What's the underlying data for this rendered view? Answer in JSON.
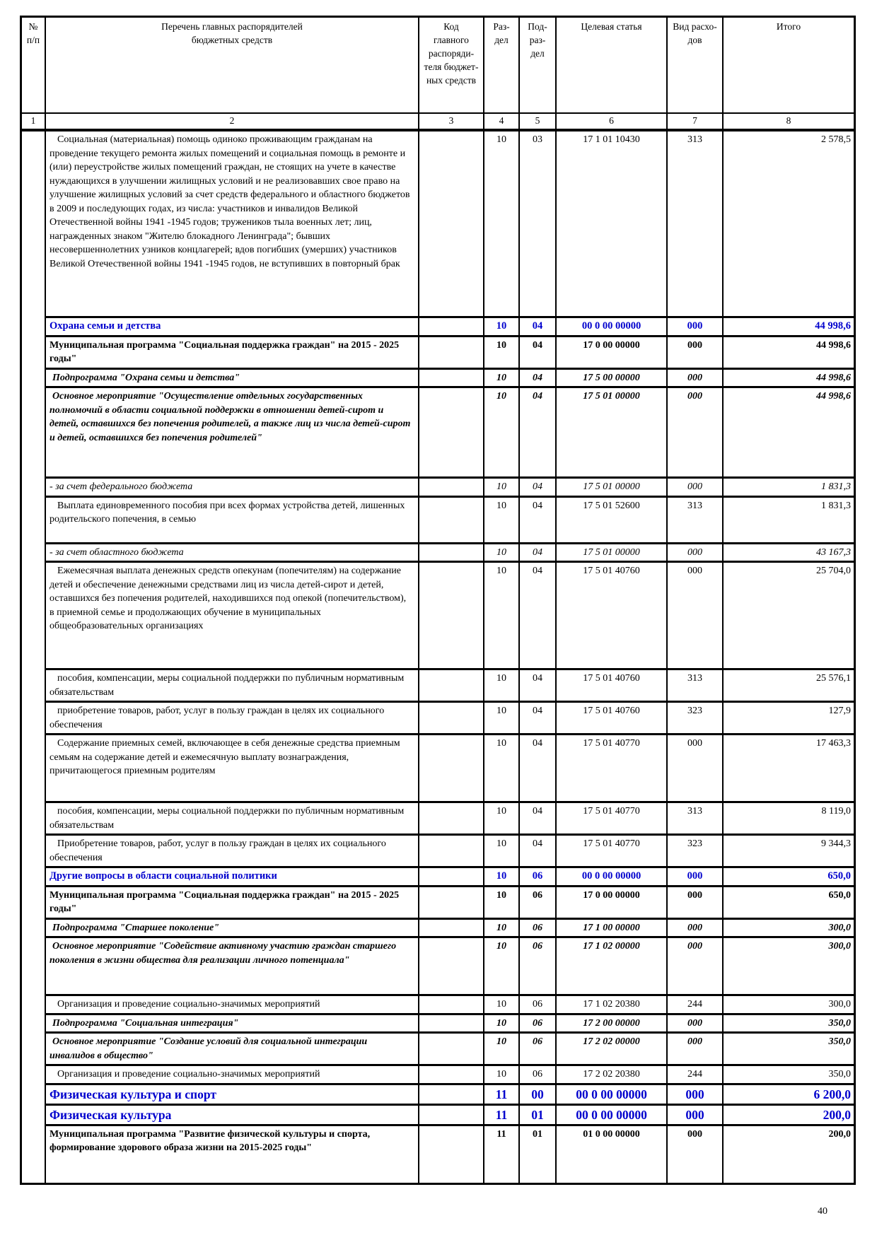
{
  "accent_color": "#0000cd",
  "page_number": "40",
  "header": {
    "cols": [
      "№\nп/п",
      "Перечень главных распорядителей\nбюджетных средств",
      "Код\nглавного\nраспоряди-\nтеля бюджет-\nных средств",
      "Раз-\nдел",
      "Под-\nраз-\nдел",
      "Целевая статья",
      "Вид расхо-\nдов",
      "Итого"
    ],
    "nums": [
      "1",
      "2",
      "3",
      "4",
      "5",
      "6",
      "7",
      "8"
    ]
  },
  "rows": [
    {
      "name": "Социальная (материальная) помощь одиноко проживающим гражданам на проведение текущего ремонта жилых помещений и социальная помощь в ремонте и (или) переустройстве жилых помещений граждан, не стоящих на учете в качестве нуждающихся в улучшении жилищных условий и не реализовавших свое право на улучшение жилищных условий за счет средств федерального и областного бюджетов в 2009 и последующих годах, из числа: участников и инвалидов Великой Отечественной войны 1941 -1945 годов; тружеников тыла военных лет; лиц, награжденных знаком \"Жителю блокадного Ленинграда\"; бывших несовершеннолетних узников концлагерей; вдов погибших (умерших) участников Великой Отечественной войны 1941 -1945 годов, не вступивших в повторный брак",
      "code": "",
      "rz": "10",
      "pr": "03",
      "cs": "17 1 01 10430",
      "vr": "313",
      "total": "2 578,5",
      "variant": "normal"
    },
    {
      "name": "Охрана семьи и детства",
      "code": "",
      "rz": "10",
      "pr": "04",
      "cs": "00 0 00 00000",
      "vr": "000",
      "total": "44 998,6",
      "variant": "blue"
    },
    {
      "name": "Муниципальная программа \"Социальная поддержка граждан\" на 2015 - 2025 годы\"",
      "code": "",
      "rz": "10",
      "pr": "04",
      "cs": "17 0 00 00000",
      "vr": "000",
      "total": "44 998,6",
      "variant": "bold"
    },
    {
      "name": "Подпрограмма \"Охрана семьи и детства\"",
      "code": "",
      "rz": "10",
      "pr": "04",
      "cs": "17 5 00 00000",
      "vr": "000",
      "total": "44 998,6",
      "variant": "bolditalic"
    },
    {
      "name": "Основное мероприятие \"Осуществление отдельных государственных полномочий в области социальной поддержки в отношении детей-сирот и детей, оставшихся без попечения родителей, а также лиц из числа детей-сирот и детей, оставшихся без попечения родителей\"",
      "code": "",
      "rz": "10",
      "pr": "04",
      "cs": "17 5 01 00000",
      "vr": "000",
      "total": "44 998,6",
      "variant": "bolditalic"
    },
    {
      "name": "- за счет федерального бюджета",
      "code": "",
      "rz": "10",
      "pr": "04",
      "cs": "17 5 01 00000",
      "vr": "000",
      "total": "1 831,3",
      "variant": "italic"
    },
    {
      "name": "Выплата единовременного пособия при всех формах устройства детей, лишенных родительского попечения, в семью",
      "code": "",
      "rz": "10",
      "pr": "04",
      "cs": "17 5 01 52600",
      "vr": "313",
      "total": "1 831,3",
      "variant": "normal"
    },
    {
      "name": "- за счет областного бюджета",
      "code": "",
      "rz": "10",
      "pr": "04",
      "cs": "17 5 01 00000",
      "vr": "000",
      "total": "43 167,3",
      "variant": "italic"
    },
    {
      "name": "Ежемесячная выплата денежных средств опекунам (попечителям) на содержание детей и обеспечение денежными средствами лиц из числа детей-сирот и детей, оставшихся без попечения родителей, находившихся под опекой (попечительством), в приемной семье и продолжающих обучение в муниципальных общеобразовательных организациях",
      "code": "",
      "rz": "10",
      "pr": "04",
      "cs": "17 5 01 40760",
      "vr": "000",
      "total": "25 704,0",
      "variant": "normal"
    },
    {
      "name": "пособия, компенсации, меры социальной поддержки по публичным нормативным обязательствам",
      "code": "",
      "rz": "10",
      "pr": "04",
      "cs": "17 5 01 40760",
      "vr": "313",
      "total": "25 576,1",
      "variant": "normal"
    },
    {
      "name": "приобретение товаров, работ, услуг в пользу граждан в целях их социального обеспечения",
      "code": "",
      "rz": "10",
      "pr": "04",
      "cs": "17 5 01 40760",
      "vr": "323",
      "total": "127,9",
      "variant": "normal"
    },
    {
      "name": "Содержание приемных семей, включающее в себя денежные средства приемным семьям на содержание детей и ежемесячную выплату вознаграждения, причитающегося приемным родителям",
      "code": "",
      "rz": "10",
      "pr": "04",
      "cs": "17 5 01 40770",
      "vr": "000",
      "total": "17 463,3",
      "variant": "normal"
    },
    {
      "name": "пособия, компенсации, меры социальной поддержки по публичным нормативным обязательствам",
      "code": "",
      "rz": "10",
      "pr": "04",
      "cs": "17 5 01 40770",
      "vr": "313",
      "total": "8 119,0",
      "variant": "normal"
    },
    {
      "name": "Приобретение товаров, работ, услуг в пользу граждан в целях их социального обеспечения",
      "code": "",
      "rz": "10",
      "pr": "04",
      "cs": "17 5 01 40770",
      "vr": "323",
      "total": "9 344,3",
      "variant": "normal"
    },
    {
      "name": "Другие вопросы в области социальной политики",
      "code": "",
      "rz": "10",
      "pr": "06",
      "cs": "00 0 00 00000",
      "vr": "000",
      "total": "650,0",
      "variant": "blue"
    },
    {
      "name": "Муниципальная программа \"Социальная поддержка граждан\" на 2015 - 2025 годы\"",
      "code": "",
      "rz": "10",
      "pr": "06",
      "cs": "17 0 00 00000",
      "vr": "000",
      "total": "650,0",
      "variant": "bold"
    },
    {
      "name": "Подпрограмма \"Старшее поколение\"",
      "code": "",
      "rz": "10",
      "pr": "06",
      "cs": "17 1 00 00000",
      "vr": "000",
      "total": "300,0",
      "variant": "bolditalic"
    },
    {
      "name": "Основное мероприятие \"Содействие активному участию граждан старшего поколения в жизни общества для реализации личного потенциала\"",
      "code": "",
      "rz": "10",
      "pr": "06",
      "cs": "17 1 02 00000",
      "vr": "000",
      "total": "300,0",
      "variant": "bolditalic"
    },
    {
      "name": "Организация и проведение социально-значимых мероприятий",
      "code": "",
      "rz": "10",
      "pr": "06",
      "cs": "17 1 02 20380",
      "vr": "244",
      "total": "300,0",
      "variant": "normal"
    },
    {
      "name": "Подпрограмма \"Социальная интеграция\"",
      "code": "",
      "rz": "10",
      "pr": "06",
      "cs": "17 2 00 00000",
      "vr": "000",
      "total": "350,0",
      "variant": "bolditalic"
    },
    {
      "name": "Основное мероприятие \"Создание условий для социальной интеграции инвалидов в общество\"",
      "code": "",
      "rz": "10",
      "pr": "06",
      "cs": "17 2 02 00000",
      "vr": "000",
      "total": "350,0",
      "variant": "bolditalic"
    },
    {
      "name": "Организация и проведение социально-значимых мероприятий",
      "code": "",
      "rz": "10",
      "pr": "06",
      "cs": "17 2 02 20380",
      "vr": "244",
      "total": "350,0",
      "variant": "normal"
    },
    {
      "name": "Физическая культура и спорт",
      "code": "",
      "rz": "11",
      "pr": "00",
      "cs": "00 0 00 00000",
      "vr": "000",
      "total": "6 200,0",
      "variant": "blue-lg"
    },
    {
      "name": "Физическая культура",
      "code": "",
      "rz": "11",
      "pr": "01",
      "cs": "00 0 00 00000",
      "vr": "000",
      "total": "200,0",
      "variant": "blue-lg"
    },
    {
      "name": "Муниципальная программа \"Развитие физической культуры и спорта, формирование здорового образа жизни на 2015-2025 годы\"",
      "code": "",
      "rz": "11",
      "pr": "01",
      "cs": "01 0 00 00000",
      "vr": "000",
      "total": "200,0",
      "variant": "bold"
    }
  ]
}
